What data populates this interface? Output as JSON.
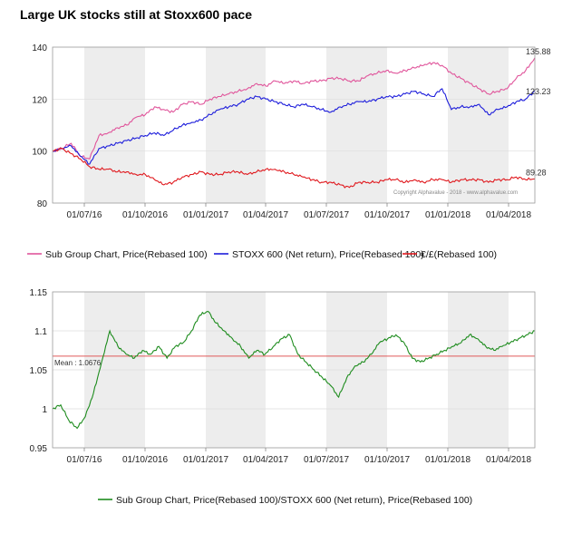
{
  "title": "Large UK stocks still at Stoxx600 pace",
  "colors": {
    "pink": "#e0559b",
    "blue": "#1d1ddb",
    "red": "#e0191e",
    "green": "#1e8c1e",
    "mean": "#e05a5a",
    "band": "#ededed"
  },
  "chart_data": [
    {
      "type": "line",
      "ylim": [
        80,
        140
      ],
      "yticks": [
        "80",
        "100",
        "120",
        "140"
      ],
      "xticks": [
        "01/07/16",
        "01/10/2016",
        "01/01/2017",
        "01/04/2017",
        "01/07/2017",
        "01/10/2017",
        "01/01/2018",
        "01/04/2018"
      ],
      "copyright": "Copyright Alphavalue - 2018 - www.alphavalue.com",
      "series": [
        {
          "name": "Sub Group Chart, Price(Rebased 100)",
          "color": "pink",
          "end_label": "135.88",
          "values": [
            100,
            101,
            103,
            98,
            97,
            106,
            107,
            109,
            110,
            113,
            114,
            117,
            116,
            115,
            118,
            119,
            118,
            120,
            121,
            122,
            123,
            124,
            126,
            125,
            127,
            126,
            127,
            126,
            127,
            127,
            128,
            128,
            127,
            127,
            129,
            130,
            131,
            130,
            131,
            132,
            133,
            134,
            133,
            130,
            128,
            126,
            124,
            122,
            123,
            124,
            128,
            131,
            135.88
          ]
        },
        {
          "name": "STOXX 600 (Net return), Price(Rebased 100)",
          "color": "blue",
          "end_label": "123.23",
          "values": [
            100,
            101,
            102,
            98,
            95,
            101,
            102,
            103,
            104,
            105,
            106,
            107,
            106,
            108,
            110,
            111,
            112,
            114,
            116,
            117,
            118,
            120,
            121,
            120,
            119,
            118,
            117,
            118,
            117,
            116,
            115,
            117,
            118,
            119,
            119,
            120,
            121,
            121,
            122,
            123,
            122,
            121,
            124,
            116,
            117,
            117,
            118,
            114,
            116,
            117,
            119,
            120,
            123.23
          ]
        },
        {
          "name": "€/£(Rebased 100)",
          "color": "red",
          "end_label": "89.28",
          "values": [
            100,
            101,
            99,
            97,
            94,
            93,
            93,
            92,
            92,
            91,
            91,
            89,
            87,
            88,
            90,
            91,
            92,
            91,
            91,
            92,
            92,
            91,
            92,
            93,
            93,
            92,
            91,
            90,
            89,
            88,
            88,
            87,
            86,
            88,
            88,
            88,
            89,
            89,
            88,
            89,
            88,
            89,
            89,
            88,
            89,
            89,
            89,
            88,
            89,
            89,
            90,
            89,
            89.28
          ]
        }
      ]
    },
    {
      "type": "line",
      "ylim": [
        0.95,
        1.15
      ],
      "yticks": [
        "0.95",
        "1",
        "1.05",
        "1.1",
        "1.15"
      ],
      "xticks": [
        "01/07/16",
        "01/10/2016",
        "01/01/2017",
        "01/04/2017",
        "01/07/2017",
        "01/10/2017",
        "01/01/2018",
        "01/04/2018"
      ],
      "mean": 1.0676,
      "mean_label": "Mean : 1.0676",
      "series": [
        {
          "name": "Sub Group Chart, Price(Rebased 100)/STOXX 600 (Net return), Price(Rebased 100)",
          "color": "green",
          "values": [
            1.0,
            1.005,
            0.985,
            0.975,
            0.99,
            1.02,
            1.06,
            1.1,
            1.08,
            1.07,
            1.065,
            1.075,
            1.07,
            1.08,
            1.065,
            1.08,
            1.085,
            1.1,
            1.12,
            1.125,
            1.11,
            1.1,
            1.09,
            1.08,
            1.065,
            1.075,
            1.07,
            1.08,
            1.09,
            1.095,
            1.07,
            1.06,
            1.05,
            1.04,
            1.03,
            1.015,
            1.04,
            1.055,
            1.06,
            1.07,
            1.085,
            1.09,
            1.095,
            1.085,
            1.065,
            1.06,
            1.065,
            1.07,
            1.075,
            1.08,
            1.085,
            1.095,
            1.09,
            1.08,
            1.075,
            1.08,
            1.085,
            1.09,
            1.095,
            1.1
          ]
        }
      ]
    }
  ]
}
